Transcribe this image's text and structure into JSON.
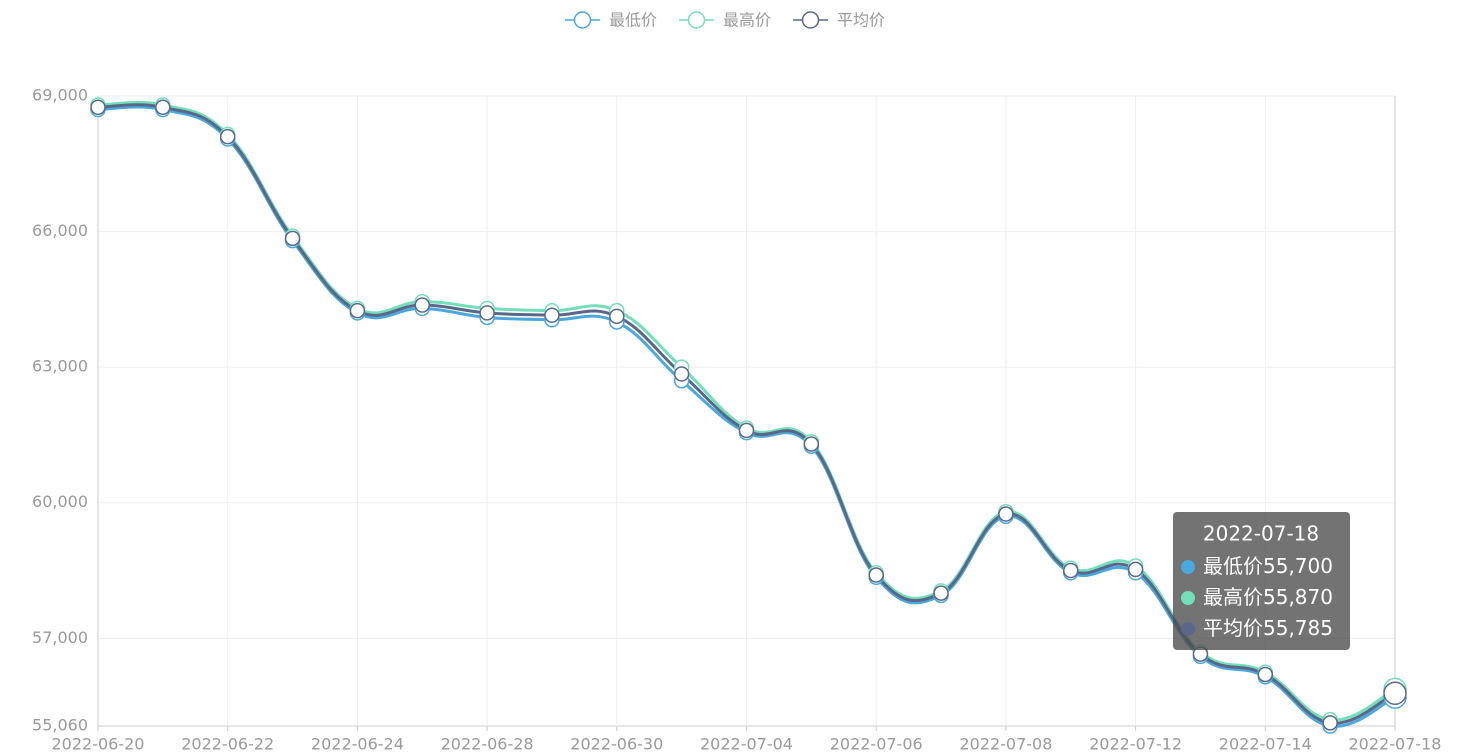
{
  "chart_data": {
    "type": "line",
    "categories": [
      "2022-06-20",
      null,
      "2022-06-22",
      null,
      "2022-06-24",
      null,
      "2022-06-28",
      null,
      "2022-06-30",
      null,
      "2022-07-04",
      null,
      "2022-07-06",
      null,
      "2022-07-08",
      null,
      "2022-07-12",
      null,
      "2022-07-14",
      null,
      "2022-07-18"
    ],
    "series": [
      {
        "name": "最低价",
        "color": "#4aa8dc",
        "values": [
          68700,
          68700,
          68050,
          65800,
          64200,
          64300,
          64100,
          64050,
          64000,
          62700,
          61550,
          61250,
          58350,
          57950,
          59700,
          58450,
          58450,
          56600,
          56150,
          55060,
          55700
        ],
        "value_labels": [
          null,
          null,
          null,
          null,
          null,
          null,
          null,
          null,
          null,
          null,
          null,
          null,
          null,
          null,
          null,
          null,
          null,
          null,
          null,
          null,
          "55,700"
        ]
      },
      {
        "name": "最高价",
        "color": "#72dfb9",
        "values": [
          68800,
          68800,
          68150,
          65900,
          64300,
          64450,
          64300,
          64250,
          64250,
          63000,
          61650,
          61350,
          58450,
          58050,
          59800,
          58550,
          58600,
          56700,
          56250,
          55200,
          55870
        ],
        "value_labels": [
          null,
          null,
          null,
          null,
          null,
          null,
          null,
          null,
          null,
          null,
          null,
          null,
          null,
          null,
          null,
          null,
          null,
          null,
          null,
          null,
          "55,870"
        ]
      },
      {
        "name": "平均价",
        "color": "#5b6789",
        "values": [
          68750,
          68750,
          68100,
          65850,
          64250,
          64375,
          64200,
          64150,
          64125,
          62850,
          61600,
          61300,
          58400,
          58000,
          59750,
          58500,
          58525,
          56650,
          56200,
          55130,
          55785
        ],
        "value_labels": [
          null,
          null,
          null,
          null,
          null,
          null,
          null,
          null,
          null,
          null,
          null,
          null,
          null,
          null,
          null,
          null,
          null,
          null,
          null,
          null,
          "55,785"
        ]
      }
    ],
    "ylim": [
      55060,
      69000
    ],
    "yticks": [
      {
        "value": 55060,
        "label": "55,060"
      },
      {
        "value": 57000,
        "label": "57,000"
      },
      {
        "value": 60000,
        "label": "60,000"
      },
      {
        "value": 63000,
        "label": "63,000"
      },
      {
        "value": 66000,
        "label": "66,000"
      },
      {
        "value": 69000,
        "label": "69,000"
      }
    ],
    "grid": true,
    "legend": "top",
    "tooltip_index": 20
  }
}
